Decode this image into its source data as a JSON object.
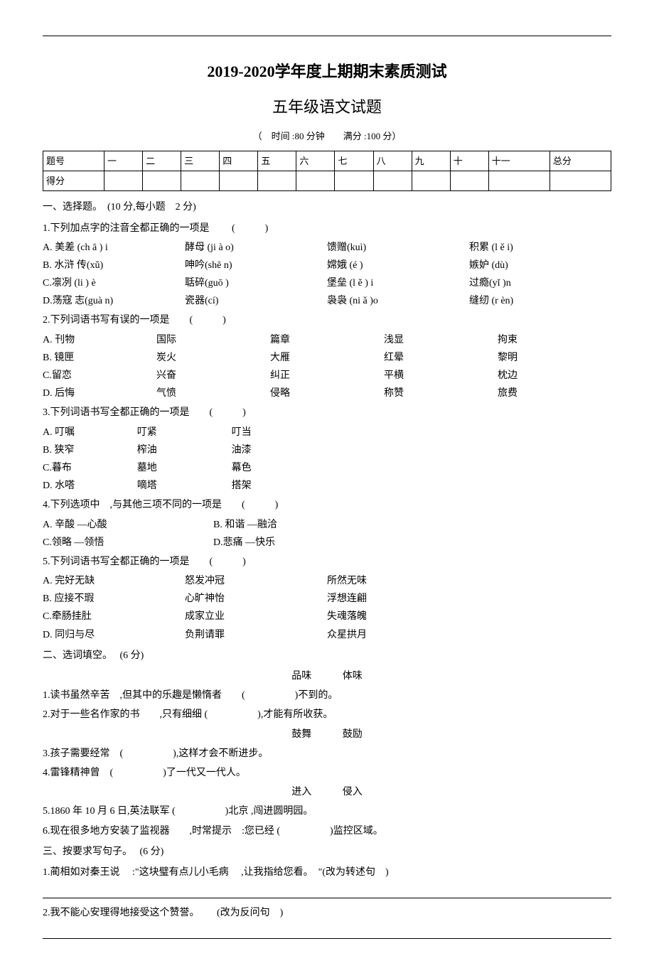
{
  "rule": "",
  "header": {
    "title1": "2019-2020学年度上期期末素质测试",
    "title2": "五年级语文试题",
    "meta": "（　时间 :80 分钟　　满分 :100 分）"
  },
  "scoreTable": {
    "headers": [
      "题号",
      "一",
      "二",
      "三",
      "四",
      "五",
      "六",
      "七",
      "八",
      "九",
      "十",
      "十一",
      "总分"
    ],
    "row2_label": "得分"
  },
  "s1": {
    "title": "一、选择题。　(10 分,每小题　2 分)",
    "q1": {
      "stem": "1.下列加点字的注音全都正确的一项是　　 (　　　)",
      "a": [
        "A. 美差 (ch ā ) i",
        "酵母 (ji à o)",
        "馈赠(kuì)",
        "积累 (l ě i)"
      ],
      "b": [
        "B. 水浒 传(xǔ)",
        "呻吟(shē n)",
        "嫦娥 (é )",
        "嫉妒 (dù)"
      ],
      "c": [
        "C.凛冽 (li ) è",
        "聒碎(guō )",
        "堡垒 (l ě ) i",
        "过瘾(yǐ )n"
      ],
      "d": [
        "D.荡寇 志(guà n)",
        "瓷器(cí)",
        "袅袅 (ni ǎ )o",
        "缝纫 (r èn)"
      ]
    },
    "q2": {
      "stem": "2.下列词语书写有误的一项是　　(　　　)",
      "a": [
        "A. 刊物",
        "国际",
        "篇章",
        "浅显",
        "拘束"
      ],
      "b": [
        "B. 镜匣",
        "炭火",
        "大雁",
        "红晕",
        "黎明"
      ],
      "c": [
        "C.留恋",
        "兴奋",
        "纠正",
        "平横",
        "枕边"
      ],
      "d": [
        "D. 后悔",
        "气愤",
        "侵略",
        "称赞",
        "旅费"
      ]
    },
    "q3": {
      "stem": "3.下列词语书写全都正确的一项是　　(　　　)",
      "a": [
        "A. 叮嘱",
        "叮紧",
        "叮当"
      ],
      "b": [
        "B. 狭窄",
        "榨油",
        "油漆"
      ],
      "c": [
        "C.暮布",
        "墓地",
        "幕色"
      ],
      "d": [
        "D. 水嗒",
        "嘀塔",
        "搭架"
      ]
    },
    "q4": {
      "stem": "4.下列选项中　,与其他三项不同的一项是　　(　　　)",
      "a": "A. 辛酸 —心酸",
      "b": "B. 和谐 —融洽",
      "c": "C.领略 —领悟",
      "d": "D.悲痛 —快乐"
    },
    "q5": {
      "stem": "5.下列词语书写全都正确的一项是　　(　　　)",
      "a": [
        "A. 完好无缺",
        "怒发冲冠",
        "所然无味"
      ],
      "b": [
        "B. 应接不瑕",
        "心旷神怡",
        "浮想连翩"
      ],
      "c": [
        "C.牵肠挂肚",
        "成家立业",
        "失魂落魄"
      ],
      "d": [
        "D. 同归与尽",
        "负荆请罪",
        "众星拱月"
      ]
    }
  },
  "s2": {
    "title": "二、选词填空。　 (6 分)",
    "pair1": {
      "w1": "品味",
      "w2": "体味"
    },
    "q1": "1.读书虽然辛苦　,但其中的乐趣是懒惰者　　(　　　　　)不到的。",
    "q2": "2.对于一些名作家的书　　,只有细细 (　　　　　),才能有所收获。",
    "pair2": {
      "w1": "鼓舞",
      "w2": "鼓励"
    },
    "q3": "3.孩子需要经常　(　　　　　),这样才会不断进步。",
    "q4": "4.雷锋精神曾　(　　　　　)了一代又一代人。",
    "pair3": {
      "w1": "进入",
      "w2": "侵入"
    },
    "q5": "5.1860 年 10 月 6 日,英法联军 (　　　　　)北京 ,闯进圆明园。",
    "q6": "6.现在很多地方安装了监视器　　,时常提示　:您已经 (　　　　　)监控区域。"
  },
  "s3": {
    "title": "三、按要求写句子。　 (6 分)",
    "q1": "1.蔺相如对秦王说　 :\"这块璧有点儿小毛病　 ,让我指给您看。　\"(改为转述句　)",
    "q2": "2.我不能心安理得地接受这个赞誉。　　 (改为反问句　)"
  }
}
